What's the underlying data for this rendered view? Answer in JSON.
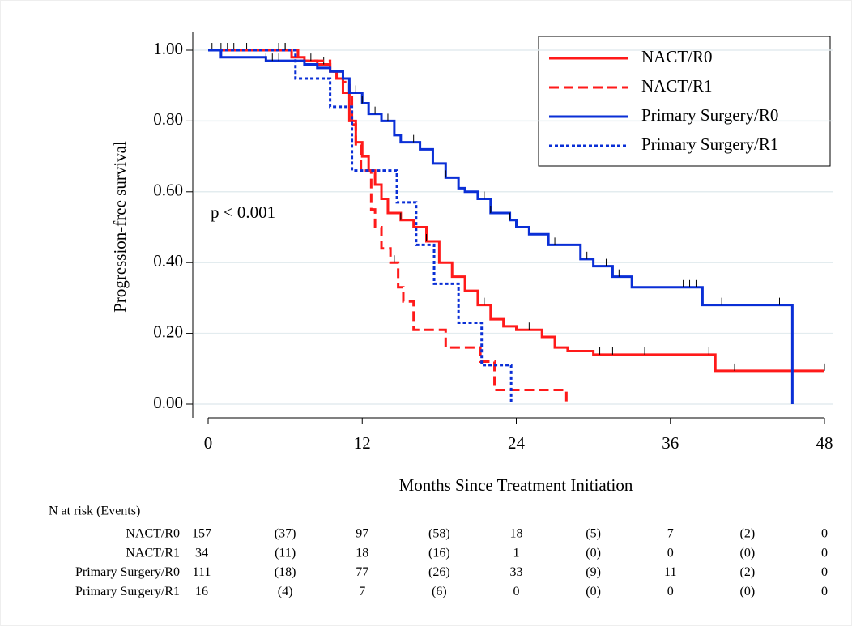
{
  "chart_data": {
    "type": "kaplan-meier",
    "y_label": "Progression-free survival",
    "x_label": "Months Since Treatment Initiation",
    "annotation": "p < 0.001",
    "xlim": [
      0,
      48
    ],
    "xticks": [
      0,
      12,
      24,
      36,
      48
    ],
    "ylim": [
      0,
      1
    ],
    "yticks": [
      {
        "value": 0,
        "label": "0.00"
      },
      {
        "value": 0.2,
        "label": "0.20"
      },
      {
        "value": 0.4,
        "label": "0.40"
      },
      {
        "value": 0.6,
        "label": "0.60"
      },
      {
        "value": 0.8,
        "label": "0.80"
      },
      {
        "value": 1,
        "label": "1.00"
      }
    ],
    "grid": true,
    "legend": "top-right",
    "series": [
      {
        "name": "NACT/R0",
        "color": "#ff1a1a",
        "dash": "solid",
        "x": [
          0,
          6.5,
          7.5,
          8.5,
          9.5,
          10,
          10.5,
          11,
          11.5,
          12,
          12.5,
          13,
          13.5,
          14,
          15,
          16,
          17,
          18,
          19,
          20,
          21,
          22,
          23,
          24,
          26,
          27,
          28,
          30,
          39.5,
          48
        ],
        "values": [
          1,
          0.98,
          0.97,
          0.96,
          0.94,
          0.92,
          0.88,
          0.8,
          0.74,
          0.7,
          0.66,
          0.62,
          0.58,
          0.54,
          0.52,
          0.5,
          0.46,
          0.4,
          0.36,
          0.32,
          0.28,
          0.24,
          0.22,
          0.21,
          0.19,
          0.16,
          0.15,
          0.14,
          0.094,
          0.094
        ],
        "censored": [
          0.3,
          1,
          1.5,
          2,
          3,
          5.5,
          6,
          7,
          8,
          9,
          15,
          17,
          21.5,
          25,
          30.5,
          31.5,
          34,
          39,
          41,
          48
        ]
      },
      {
        "name": "NACT/R1",
        "color": "#ff1a1a",
        "dash": "dashed",
        "x": [
          0,
          7,
          9.5,
          10.5,
          11,
          11.2,
          11.5,
          11.9,
          12.7,
          13,
          13.5,
          14.2,
          14.8,
          15.2,
          16,
          18.5,
          21.2,
          22.3,
          27.9
        ],
        "values": [
          1,
          0.97,
          0.94,
          0.91,
          0.88,
          0.79,
          0.73,
          0.66,
          0.55,
          0.5,
          0.44,
          0.4,
          0.33,
          0.29,
          0.21,
          0.16,
          0.12,
          0.04,
          0
        ],
        "censored": [
          14.5
        ]
      },
      {
        "name": "Primary Surgery/R0",
        "color": "#0a2fd6",
        "dash": "solid",
        "x": [
          0,
          1,
          4.5,
          7.5,
          8.5,
          9.5,
          10.5,
          11,
          12,
          12.5,
          13.5,
          14.5,
          15,
          16.5,
          17.5,
          18.5,
          19.5,
          20,
          21,
          22,
          23.5,
          24,
          25,
          26.5,
          29,
          30,
          31.5,
          33,
          38.5,
          45.5
        ],
        "values": [
          1,
          0.98,
          0.97,
          0.96,
          0.95,
          0.94,
          0.92,
          0.88,
          0.85,
          0.82,
          0.8,
          0.76,
          0.74,
          0.72,
          0.68,
          0.64,
          0.61,
          0.6,
          0.58,
          0.54,
          0.52,
          0.5,
          0.48,
          0.45,
          0.41,
          0.39,
          0.36,
          0.33,
          0.28,
          0
        ],
        "censored": [
          4.5,
          5,
          5.5,
          11.5,
          12,
          13,
          14,
          16,
          18.5,
          21.5,
          22,
          23.5,
          27,
          29.5,
          31,
          32,
          37,
          37.5,
          38,
          40,
          44.5
        ]
      },
      {
        "name": "Primary Surgery/R1",
        "color": "#0a2fd6",
        "dash": "dotted",
        "x": [
          0,
          6.8,
          9.5,
          11.2,
          14.7,
          16.2,
          17.6,
          19.5,
          21.3,
          23.6
        ],
        "values": [
          1,
          0.92,
          0.84,
          0.66,
          0.57,
          0.45,
          0.34,
          0.23,
          0.11,
          0
        ],
        "censored": [
          5.5,
          6
        ]
      }
    ],
    "risk_table": {
      "title": "N at risk (Events)",
      "rows": [
        {
          "label": "NACT/R0",
          "cells": [
            "157",
            "(37)",
            "97",
            "(58)",
            "18",
            "(5)",
            "7",
            "(2)",
            "0"
          ]
        },
        {
          "label": "NACT/R1",
          "cells": [
            "34",
            "(11)",
            "18",
            "(16)",
            "1",
            "(0)",
            "0",
            "(0)",
            "0"
          ]
        },
        {
          "label": "Primary Surgery/R0",
          "cells": [
            "111",
            "(18)",
            "77",
            "(26)",
            "33",
            "(9)",
            "11",
            "(2)",
            "0"
          ]
        },
        {
          "label": "Primary Surgery/R1",
          "cells": [
            "16",
            "(4)",
            "7",
            "(6)",
            "0",
            "(0)",
            "0",
            "(0)",
            "0"
          ]
        }
      ]
    }
  }
}
